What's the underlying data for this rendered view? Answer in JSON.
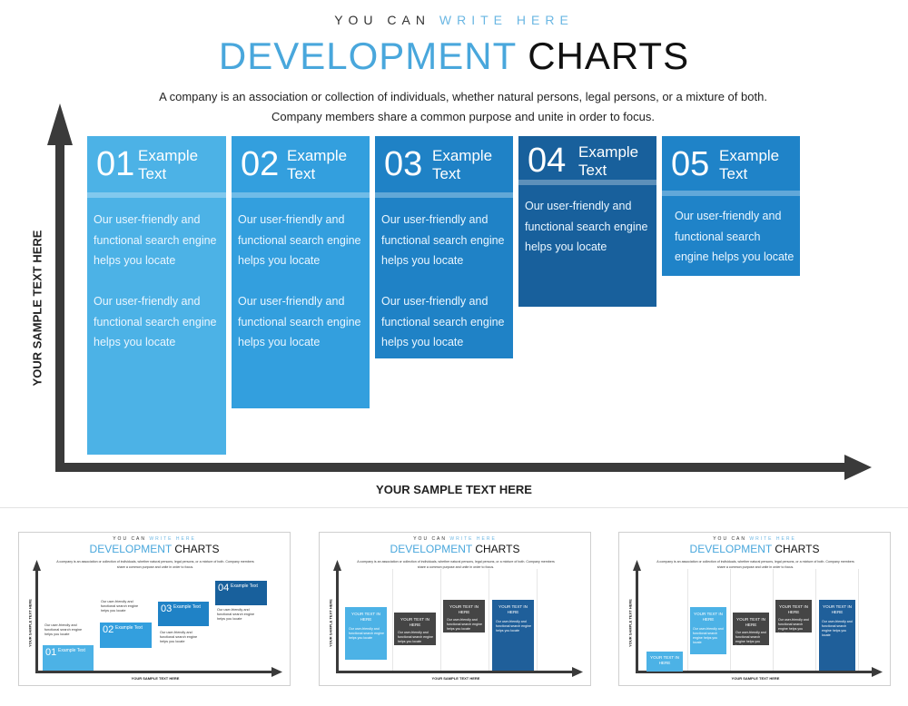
{
  "header": {
    "eyebrow_dark": "YOU CAN",
    "eyebrow_accent": "WRITE HERE",
    "title_blue": "DEVELOPMENT",
    "title_dark": "CHARTS",
    "description": "A company is an association or collection of individuals, whether natural persons, legal persons, or a mixture of both. Company members share a common purpose and unite in order to focus."
  },
  "axes": {
    "y_label": "YOUR  SAMPLE TEXT HERE",
    "x_label": "YOUR  SAMPLE TEXT HERE"
  },
  "steps": [
    {
      "num": "01",
      "title": "Example\nText",
      "color": "#4cb2e6",
      "body_1": "Our user-friendly and functional search engine helps you locate",
      "body_2": "Our user-friendly and functional search engine helps you locate"
    },
    {
      "num": "02",
      "title": "Example\nText",
      "color": "#339fde",
      "body_1": "Our user-friendly and functional search engine helps you locate",
      "body_2": "Our user-friendly and functional search engine helps you locate"
    },
    {
      "num": "03",
      "title": "Example\nText",
      "color": "#1f82c6",
      "body_1": "Our user-friendly and functional search engine helps you locate",
      "body_2": "Our user-friendly and functional search engine helps you locate"
    },
    {
      "num": "04",
      "title": "Example\nText",
      "color": "#18609c",
      "body_1": "Our user-friendly and functional search engine helps you locate"
    },
    {
      "num": "05",
      "title": "Example\nText",
      "color": "#1f83c8",
      "body_1": "Our user-friendly and functional search engine helps you locate"
    }
  ],
  "thumbnails": {
    "eyebrow_dark": "YOU CAN",
    "eyebrow_accent": "WRITE HERE",
    "title_blue": "DEVELOPMENT",
    "title_dark": "CHARTS",
    "description": "A company is an association or collection of individuals, whether natural persons, legal persons, or a mixture of both. Company members share a common purpose and unite in order to focus.",
    "y_label": "YOUR  SAMPLE TEXT HERE",
    "x_label": "YOUR  SAMPLE TEXT HERE",
    "thumb1_steps": [
      {
        "num": "01",
        "title": "Example Text",
        "note": "Our user-friendly and functional search engine helps you locate"
      },
      {
        "num": "02",
        "title": "Example Text",
        "note": "Our user-friendly and functional search engine helps you locate"
      },
      {
        "num": "03",
        "title": "Example Text",
        "note": "Our user-friendly and functional search engine helps you locate"
      },
      {
        "num": "04",
        "title": "Example Text",
        "note": "Our user-friendly and functional search engine helps you locate"
      }
    ],
    "box_heading": "YOUR TEXT IN HERE",
    "box_body": "Our user-friendly and functional search engine helps you locate"
  },
  "colors": {
    "accent": "#49a7dc",
    "axis": "#3a3a3a",
    "dark_box": "#454545"
  }
}
